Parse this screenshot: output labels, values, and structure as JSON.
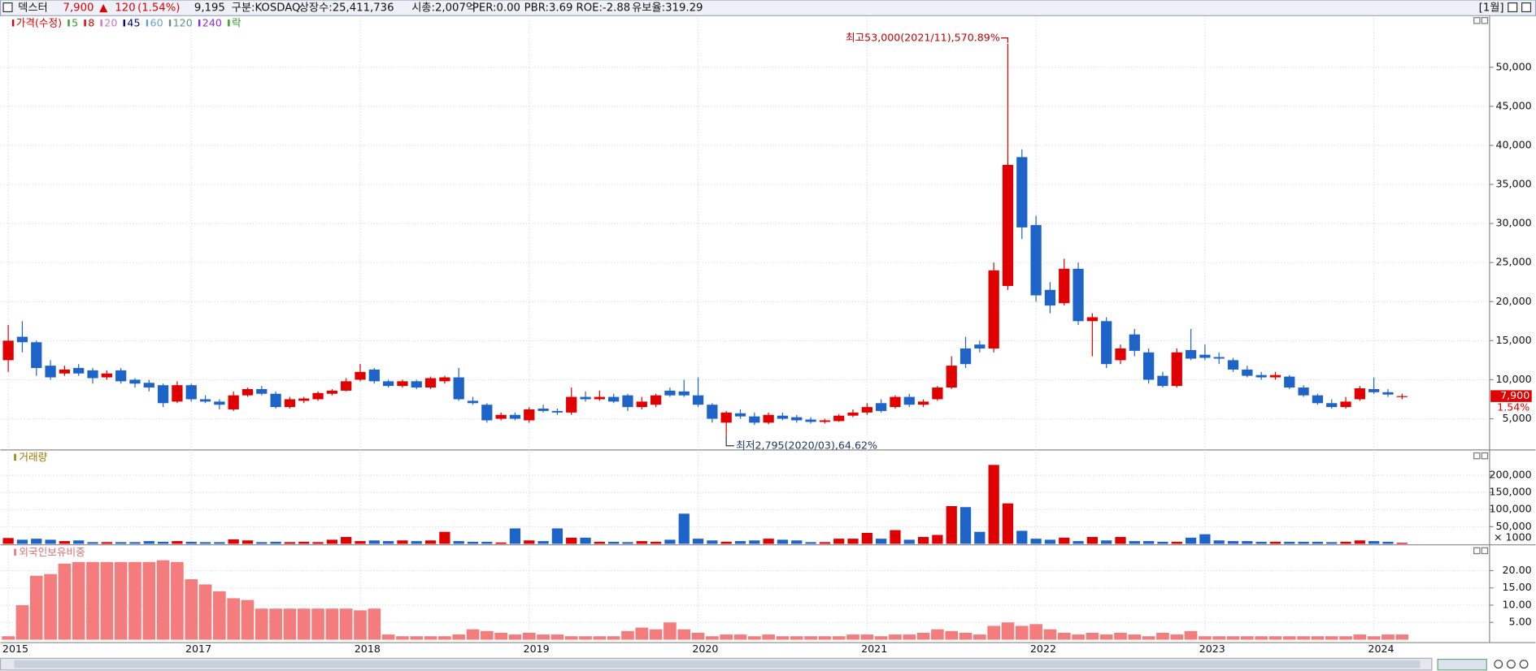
{
  "header": {
    "name": "덱스터",
    "price": "7,900",
    "arrow": "▲",
    "change": "120",
    "change_pct": "(1.54%)",
    "volume": "9,195",
    "fields": [
      "구분:KOSDAQ",
      "상장수:25,411,736",
      "시총:2,007억",
      "PER:0.00",
      "PBR:3.69",
      "ROE:-2.88",
      "유보율:319.29"
    ],
    "period": "[1월]"
  },
  "chart_data": [
    {
      "type": "candlestick",
      "legend": [
        {
          "name": "가격(수정)",
          "color": "#e00000"
        },
        {
          "name": "5",
          "color": "#2ca02c"
        },
        {
          "name": "8",
          "color": "#e00000"
        },
        {
          "name": "20",
          "color": "#d070d0"
        },
        {
          "name": "45",
          "color": "#00008b"
        },
        {
          "name": "60",
          "color": "#6a9fd4"
        },
        {
          "name": "120",
          "color": "#5f8f8f"
        },
        {
          "name": "240",
          "color": "#8a2be2"
        },
        {
          "name": "락",
          "color": "#2ca02c"
        }
      ],
      "categories": [
        "2015",
        null,
        null,
        null,
        null,
        null,
        null,
        null,
        null,
        null,
        null,
        null,
        null,
        "2017",
        null,
        null,
        null,
        null,
        null,
        null,
        null,
        null,
        null,
        null,
        null,
        "2018",
        null,
        null,
        null,
        null,
        null,
        null,
        null,
        null,
        null,
        null,
        null,
        "2019",
        null,
        null,
        null,
        null,
        null,
        null,
        null,
        null,
        null,
        null,
        null,
        "2020",
        null,
        null,
        null,
        null,
        null,
        null,
        null,
        null,
        null,
        null,
        null,
        "2021",
        null,
        null,
        null,
        null,
        null,
        null,
        null,
        null,
        null,
        null,
        null,
        "2022",
        null,
        null,
        null,
        null,
        null,
        null,
        null,
        null,
        null,
        null,
        null,
        "2023",
        null,
        null,
        null,
        null,
        null,
        null,
        null,
        null,
        null,
        null,
        null,
        "2024",
        null,
        null
      ],
      "open": [
        12500,
        15500,
        14800,
        11800,
        10800,
        11500,
        11200,
        10300,
        11200,
        10000,
        9600,
        9300,
        7200,
        9300,
        7500,
        7200,
        6200,
        8000,
        8800,
        8200,
        6500,
        7300,
        7500,
        8200,
        8600,
        10000,
        11300,
        9800,
        9200,
        9800,
        9000,
        9800,
        10300,
        7300,
        6800,
        5000,
        5500,
        4800,
        6300,
        6000,
        5800,
        7800,
        7500,
        7800,
        8000,
        6500,
        6800,
        8600,
        8500,
        8000,
        6800,
        4500,
        5700,
        5300,
        4500,
        5400,
        5200,
        4900,
        4600,
        4700,
        5400,
        5800,
        7000,
        6500,
        7800,
        6800,
        7500,
        9000,
        14000,
        14500,
        14000,
        22000,
        38500,
        29800,
        21500,
        19800,
        24200,
        17500,
        17500,
        12500,
        15800,
        13500,
        10500,
        9200,
        13800,
        13200,
        12900,
        12500,
        11300,
        10600,
        10300,
        10400,
        9000,
        8000,
        7000,
        6500,
        7500,
        8800,
        8400,
        7780
      ],
      "high": [
        17000,
        17500,
        15000,
        12500,
        11800,
        12000,
        11500,
        11200,
        11500,
        10200,
        10000,
        9500,
        9800,
        9500,
        8000,
        7500,
        8500,
        9000,
        9200,
        8500,
        7800,
        7800,
        8500,
        8800,
        10200,
        12000,
        11500,
        10000,
        10000,
        10000,
        10400,
        10500,
        11500,
        7800,
        7000,
        5800,
        5800,
        6500,
        6800,
        6300,
        9000,
        8500,
        8600,
        8200,
        8200,
        7800,
        8200,
        9000,
        10000,
        10300,
        7000,
        6000,
        6200,
        5800,
        5800,
        5800,
        5500,
        5200,
        5000,
        5600,
        6200,
        7000,
        7500,
        8000,
        8200,
        7500,
        9200,
        13000,
        15500,
        15000,
        25000,
        53000,
        39500,
        31000,
        22500,
        25500,
        25000,
        18500,
        18000,
        14500,
        16500,
        14000,
        11000,
        14000,
        16500,
        14500,
        13500,
        12800,
        11800,
        11000,
        11000,
        10600,
        9300,
        8200,
        7500,
        7800,
        9200,
        10300,
        8800,
        8200
      ],
      "low": [
        11000,
        13500,
        10500,
        10000,
        10500,
        10500,
        9500,
        10000,
        9500,
        9000,
        8500,
        6500,
        7000,
        7200,
        7000,
        6200,
        6000,
        7800,
        8000,
        6300,
        6300,
        7000,
        7300,
        8000,
        8500,
        9800,
        9500,
        9000,
        9000,
        8800,
        8800,
        9500,
        7300,
        6800,
        4500,
        4800,
        4800,
        4500,
        5800,
        5500,
        5500,
        7200,
        7300,
        7000,
        6000,
        6200,
        6500,
        7800,
        7800,
        6500,
        4500,
        2795,
        5000,
        4200,
        4300,
        4800,
        4500,
        4400,
        4400,
        4600,
        5200,
        5500,
        5800,
        6300,
        6500,
        6500,
        7300,
        8800,
        11500,
        13500,
        13500,
        21500,
        28000,
        20000,
        18500,
        19500,
        17000,
        13000,
        11500,
        12000,
        13000,
        9500,
        9000,
        9000,
        12500,
        12500,
        12000,
        11000,
        10300,
        10000,
        10000,
        8800,
        7800,
        6800,
        6300,
        6300,
        7300,
        8200,
        7800,
        7500
      ],
      "close": [
        15000,
        14800,
        11500,
        10300,
        11300,
        10800,
        10200,
        10800,
        9800,
        9500,
        9000,
        7000,
        9300,
        7500,
        7200,
        6800,
        8000,
        8800,
        8200,
        6500,
        7500,
        7600,
        8300,
        8600,
        9800,
        11000,
        9800,
        9200,
        9800,
        9000,
        10200,
        10300,
        7500,
        7000,
        4800,
        5500,
        5000,
        6200,
        6000,
        5800,
        7800,
        7500,
        7800,
        7200,
        6500,
        7200,
        8000,
        8000,
        8000,
        6800,
        5000,
        5800,
        5300,
        4500,
        5500,
        5000,
        4800,
        4600,
        4800,
        5400,
        5800,
        6500,
        6000,
        7800,
        6800,
        7200,
        9000,
        11800,
        12000,
        14000,
        24000,
        37500,
        29500,
        20800,
        19500,
        24200,
        17500,
        18000,
        12000,
        14000,
        13700,
        10000,
        9200,
        13500,
        12700,
        12800,
        12700,
        11300,
        10500,
        10300,
        10600,
        9000,
        8000,
        7000,
        6500,
        7200,
        8900,
        8400,
        8100,
        7900
      ],
      "up_color": "#e00000",
      "down_color": "#1e64c8",
      "ylim": [
        1010,
        56360
      ],
      "yticks": [
        {
          "value": 5000,
          "label": "5,000"
        },
        {
          "value": 10000,
          "label": "10,000"
        },
        {
          "value": 15000,
          "label": "15,000"
        },
        {
          "value": 20000,
          "label": "20,000"
        },
        {
          "value": 25000,
          "label": "25,000"
        },
        {
          "value": 30000,
          "label": "30,000"
        },
        {
          "value": 35000,
          "label": "35,000"
        },
        {
          "value": 40000,
          "label": "40,000"
        },
        {
          "value": 45000,
          "label": "45,000"
        },
        {
          "value": 50000,
          "label": "50,000"
        }
      ],
      "grid": true,
      "high_label": "최고53,000(2021/11),570.89%",
      "low_label": "최저2,795(2020/03),64.62%",
      "last_price_label": "7,900",
      "last_pct_label": "1.54%"
    },
    {
      "type": "bar",
      "title": "거래량",
      "title_color": "#a07800",
      "values": [
        17000,
        12000,
        15000,
        12000,
        8000,
        10000,
        5000,
        5000,
        5000,
        5000,
        8000,
        6000,
        8000,
        6000,
        5000,
        5000,
        13000,
        10000,
        5000,
        6000,
        5000,
        6000,
        5000,
        12000,
        20000,
        8000,
        10000,
        8000,
        10000,
        8000,
        10000,
        35000,
        8000,
        6000,
        6000,
        4000,
        45000,
        10000,
        8000,
        45000,
        18000,
        18000,
        6000,
        6000,
        5000,
        8000,
        6000,
        12000,
        88000,
        15000,
        10000,
        6000,
        8000,
        10000,
        15000,
        12000,
        10000,
        5000,
        5000,
        15000,
        15000,
        32000,
        15000,
        40000,
        12000,
        20000,
        26000,
        110000,
        107000,
        35000,
        230000,
        118000,
        38000,
        15000,
        12000,
        18000,
        8000,
        20000,
        10000,
        20000,
        8000,
        8000,
        6000,
        6000,
        18000,
        28000,
        10000,
        8000,
        8000,
        6000,
        6000,
        6000,
        6000,
        6000,
        5000,
        6000,
        10000,
        8000,
        6000,
        3000
      ],
      "ylim": [
        0,
        268000
      ],
      "yticks": [
        {
          "value": 50000,
          "label": "50,000"
        },
        {
          "value": 100000,
          "label": "100,000"
        },
        {
          "value": 150000,
          "label": "150,000"
        },
        {
          "value": 200000,
          "label": "200,000"
        }
      ],
      "unit_label": "× 1000",
      "grid": true
    },
    {
      "type": "bar",
      "title": "외국인보유비중",
      "title_color": "#e07070",
      "color": "#f47c7c",
      "values": [
        1,
        10,
        18.5,
        19,
        22,
        22.5,
        22.5,
        22.5,
        22.5,
        22.5,
        22.5,
        23,
        22.5,
        17.5,
        16,
        14,
        12,
        11.5,
        9,
        9,
        9,
        9,
        9,
        9,
        9,
        8.5,
        9,
        1.5,
        1,
        1,
        1,
        1,
        1.5,
        3,
        2.5,
        2,
        1.5,
        2,
        1.5,
        1.5,
        1,
        1,
        1,
        1,
        2.5,
        3.5,
        3,
        5,
        3,
        2,
        1,
        1.5,
        1.5,
        1,
        1.5,
        1,
        1,
        1,
        1,
        1,
        1.5,
        1.5,
        1,
        1.5,
        1.5,
        2,
        3,
        2.5,
        2,
        1.5,
        4,
        5,
        4,
        4.5,
        3,
        2,
        1.5,
        2,
        1.5,
        2,
        1.5,
        1,
        2,
        1.5,
        2.5,
        1,
        1,
        1,
        1,
        1,
        1,
        1,
        1,
        1,
        1,
        1,
        1.5,
        1,
        1.5,
        1.5
      ],
      "ylim": [
        0,
        26.9
      ],
      "yticks": [
        {
          "value": 5,
          "label": "5.00"
        },
        {
          "value": 10,
          "label": "10.00"
        },
        {
          "value": 15,
          "label": "15.00"
        },
        {
          "value": 20,
          "label": "20.00"
        }
      ],
      "grid": true
    }
  ]
}
